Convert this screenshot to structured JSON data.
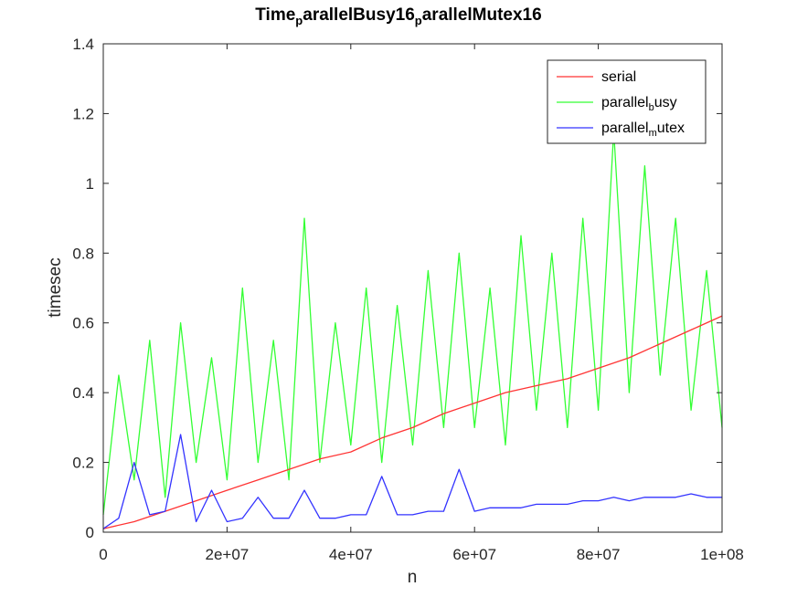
{
  "chart_data": {
    "type": "line",
    "title": "Time_parallelBusy16_parallelMutex16",
    "title_parts": [
      "Time",
      "p",
      "arallelBusy16",
      "p",
      "arallelMutex16"
    ],
    "xlabel": "n",
    "ylabel": "timesec",
    "xlim": [
      0,
      100000000
    ],
    "ylim": [
      0,
      1.4
    ],
    "x_ticks": [
      0,
      20000000,
      40000000,
      60000000,
      80000000,
      100000000
    ],
    "x_tick_labels": [
      "0",
      "2e+07",
      "4e+07",
      "6e+07",
      "8e+07",
      "1e+08"
    ],
    "y_ticks": [
      0,
      0.2,
      0.4,
      0.6,
      0.8,
      1,
      1.2,
      1.4
    ],
    "y_tick_labels": [
      "0",
      "0.2",
      "0.4",
      "0.6",
      "0.8",
      "1",
      "1.2",
      "1.4"
    ],
    "grid": false,
    "legend_position": "top-right",
    "series": [
      {
        "name": "serial",
        "legend_main": "serial",
        "legend_sub": "",
        "legend_tail": "",
        "color": "#ff3333",
        "x": [
          0,
          5000000,
          10000000,
          15000000,
          20000000,
          25000000,
          30000000,
          35000000,
          40000000,
          45000000,
          50000000,
          55000000,
          60000000,
          65000000,
          70000000,
          75000000,
          80000000,
          85000000,
          90000000,
          95000000,
          100000000
        ],
        "values": [
          0.01,
          0.03,
          0.06,
          0.09,
          0.12,
          0.15,
          0.18,
          0.21,
          0.23,
          0.27,
          0.3,
          0.34,
          0.37,
          0.4,
          0.42,
          0.44,
          0.47,
          0.5,
          0.54,
          0.58,
          0.62
        ]
      },
      {
        "name": "parallel_busy",
        "legend_main": "parallel",
        "legend_sub": "b",
        "legend_tail": "usy",
        "color": "#33ff33",
        "x": [
          0,
          2500000,
          5000000,
          7500000,
          10000000,
          12500000,
          15000000,
          17500000,
          20000000,
          22500000,
          25000000,
          27500000,
          30000000,
          32500000,
          35000000,
          37500000,
          40000000,
          42500000,
          45000000,
          47500000,
          50000000,
          52500000,
          55000000,
          57500000,
          60000000,
          62500000,
          65000000,
          67500000,
          70000000,
          72500000,
          75000000,
          77500000,
          80000000,
          82500000,
          85000000,
          87500000,
          90000000,
          92500000,
          95000000,
          97500000,
          100000000
        ],
        "values": [
          0.05,
          0.45,
          0.15,
          0.55,
          0.1,
          0.6,
          0.2,
          0.5,
          0.15,
          0.7,
          0.2,
          0.55,
          0.15,
          0.9,
          0.2,
          0.6,
          0.25,
          0.7,
          0.2,
          0.65,
          0.25,
          0.75,
          0.3,
          0.8,
          0.3,
          0.7,
          0.25,
          0.85,
          0.35,
          0.8,
          0.3,
          0.9,
          0.35,
          1.15,
          0.4,
          1.05,
          0.45,
          0.9,
          0.35,
          0.75,
          0.3
        ]
      },
      {
        "name": "parallel_mutex",
        "legend_main": "parallel",
        "legend_sub": "m",
        "legend_tail": "utex",
        "color": "#3333ff",
        "x": [
          0,
          2500000,
          5000000,
          7500000,
          10000000,
          12500000,
          15000000,
          17500000,
          20000000,
          22500000,
          25000000,
          27500000,
          30000000,
          32500000,
          35000000,
          37500000,
          40000000,
          42500000,
          45000000,
          47500000,
          50000000,
          52500000,
          55000000,
          57500000,
          60000000,
          62500000,
          65000000,
          67500000,
          70000000,
          72500000,
          75000000,
          77500000,
          80000000,
          82500000,
          85000000,
          87500000,
          90000000,
          92500000,
          95000000,
          97500000,
          100000000
        ],
        "values": [
          0.01,
          0.04,
          0.2,
          0.05,
          0.06,
          0.28,
          0.03,
          0.12,
          0.03,
          0.04,
          0.1,
          0.04,
          0.04,
          0.12,
          0.04,
          0.04,
          0.05,
          0.05,
          0.16,
          0.05,
          0.05,
          0.06,
          0.06,
          0.18,
          0.06,
          0.07,
          0.07,
          0.07,
          0.08,
          0.08,
          0.08,
          0.09,
          0.09,
          0.1,
          0.09,
          0.1,
          0.1,
          0.1,
          0.11,
          0.1,
          0.1
        ]
      }
    ]
  }
}
